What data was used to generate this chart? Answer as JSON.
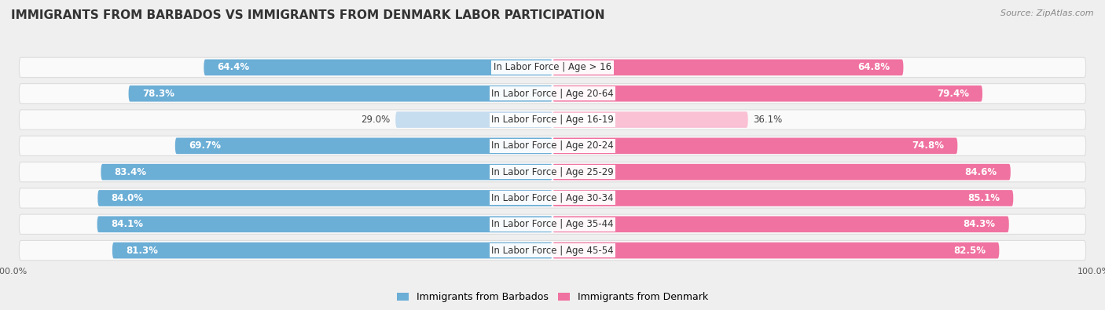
{
  "title": "IMMIGRANTS FROM BARBADOS VS IMMIGRANTS FROM DENMARK LABOR PARTICIPATION",
  "source": "Source: ZipAtlas.com",
  "categories": [
    "In Labor Force | Age > 16",
    "In Labor Force | Age 20-64",
    "In Labor Force | Age 16-19",
    "In Labor Force | Age 20-24",
    "In Labor Force | Age 25-29",
    "In Labor Force | Age 30-34",
    "In Labor Force | Age 35-44",
    "In Labor Force | Age 45-54"
  ],
  "barbados_values": [
    64.4,
    78.3,
    29.0,
    69.7,
    83.4,
    84.0,
    84.1,
    81.3
  ],
  "denmark_values": [
    64.8,
    79.4,
    36.1,
    74.8,
    84.6,
    85.1,
    84.3,
    82.5
  ],
  "barbados_color": "#6BAED6",
  "denmark_color": "#F072A0",
  "barbados_color_light": "#C6DCEF",
  "denmark_color_light": "#FAC0D4",
  "bar_height": 0.62,
  "background_color": "#EFEFEF",
  "row_bg_color": "#FAFAFA",
  "row_border_color": "#DDDDDD",
  "legend_barbados": "Immigrants from Barbados",
  "legend_denmark": "Immigrants from Denmark",
  "max_value": 100.0,
  "title_fontsize": 11,
  "label_fontsize": 8.5,
  "value_fontsize": 8.5
}
